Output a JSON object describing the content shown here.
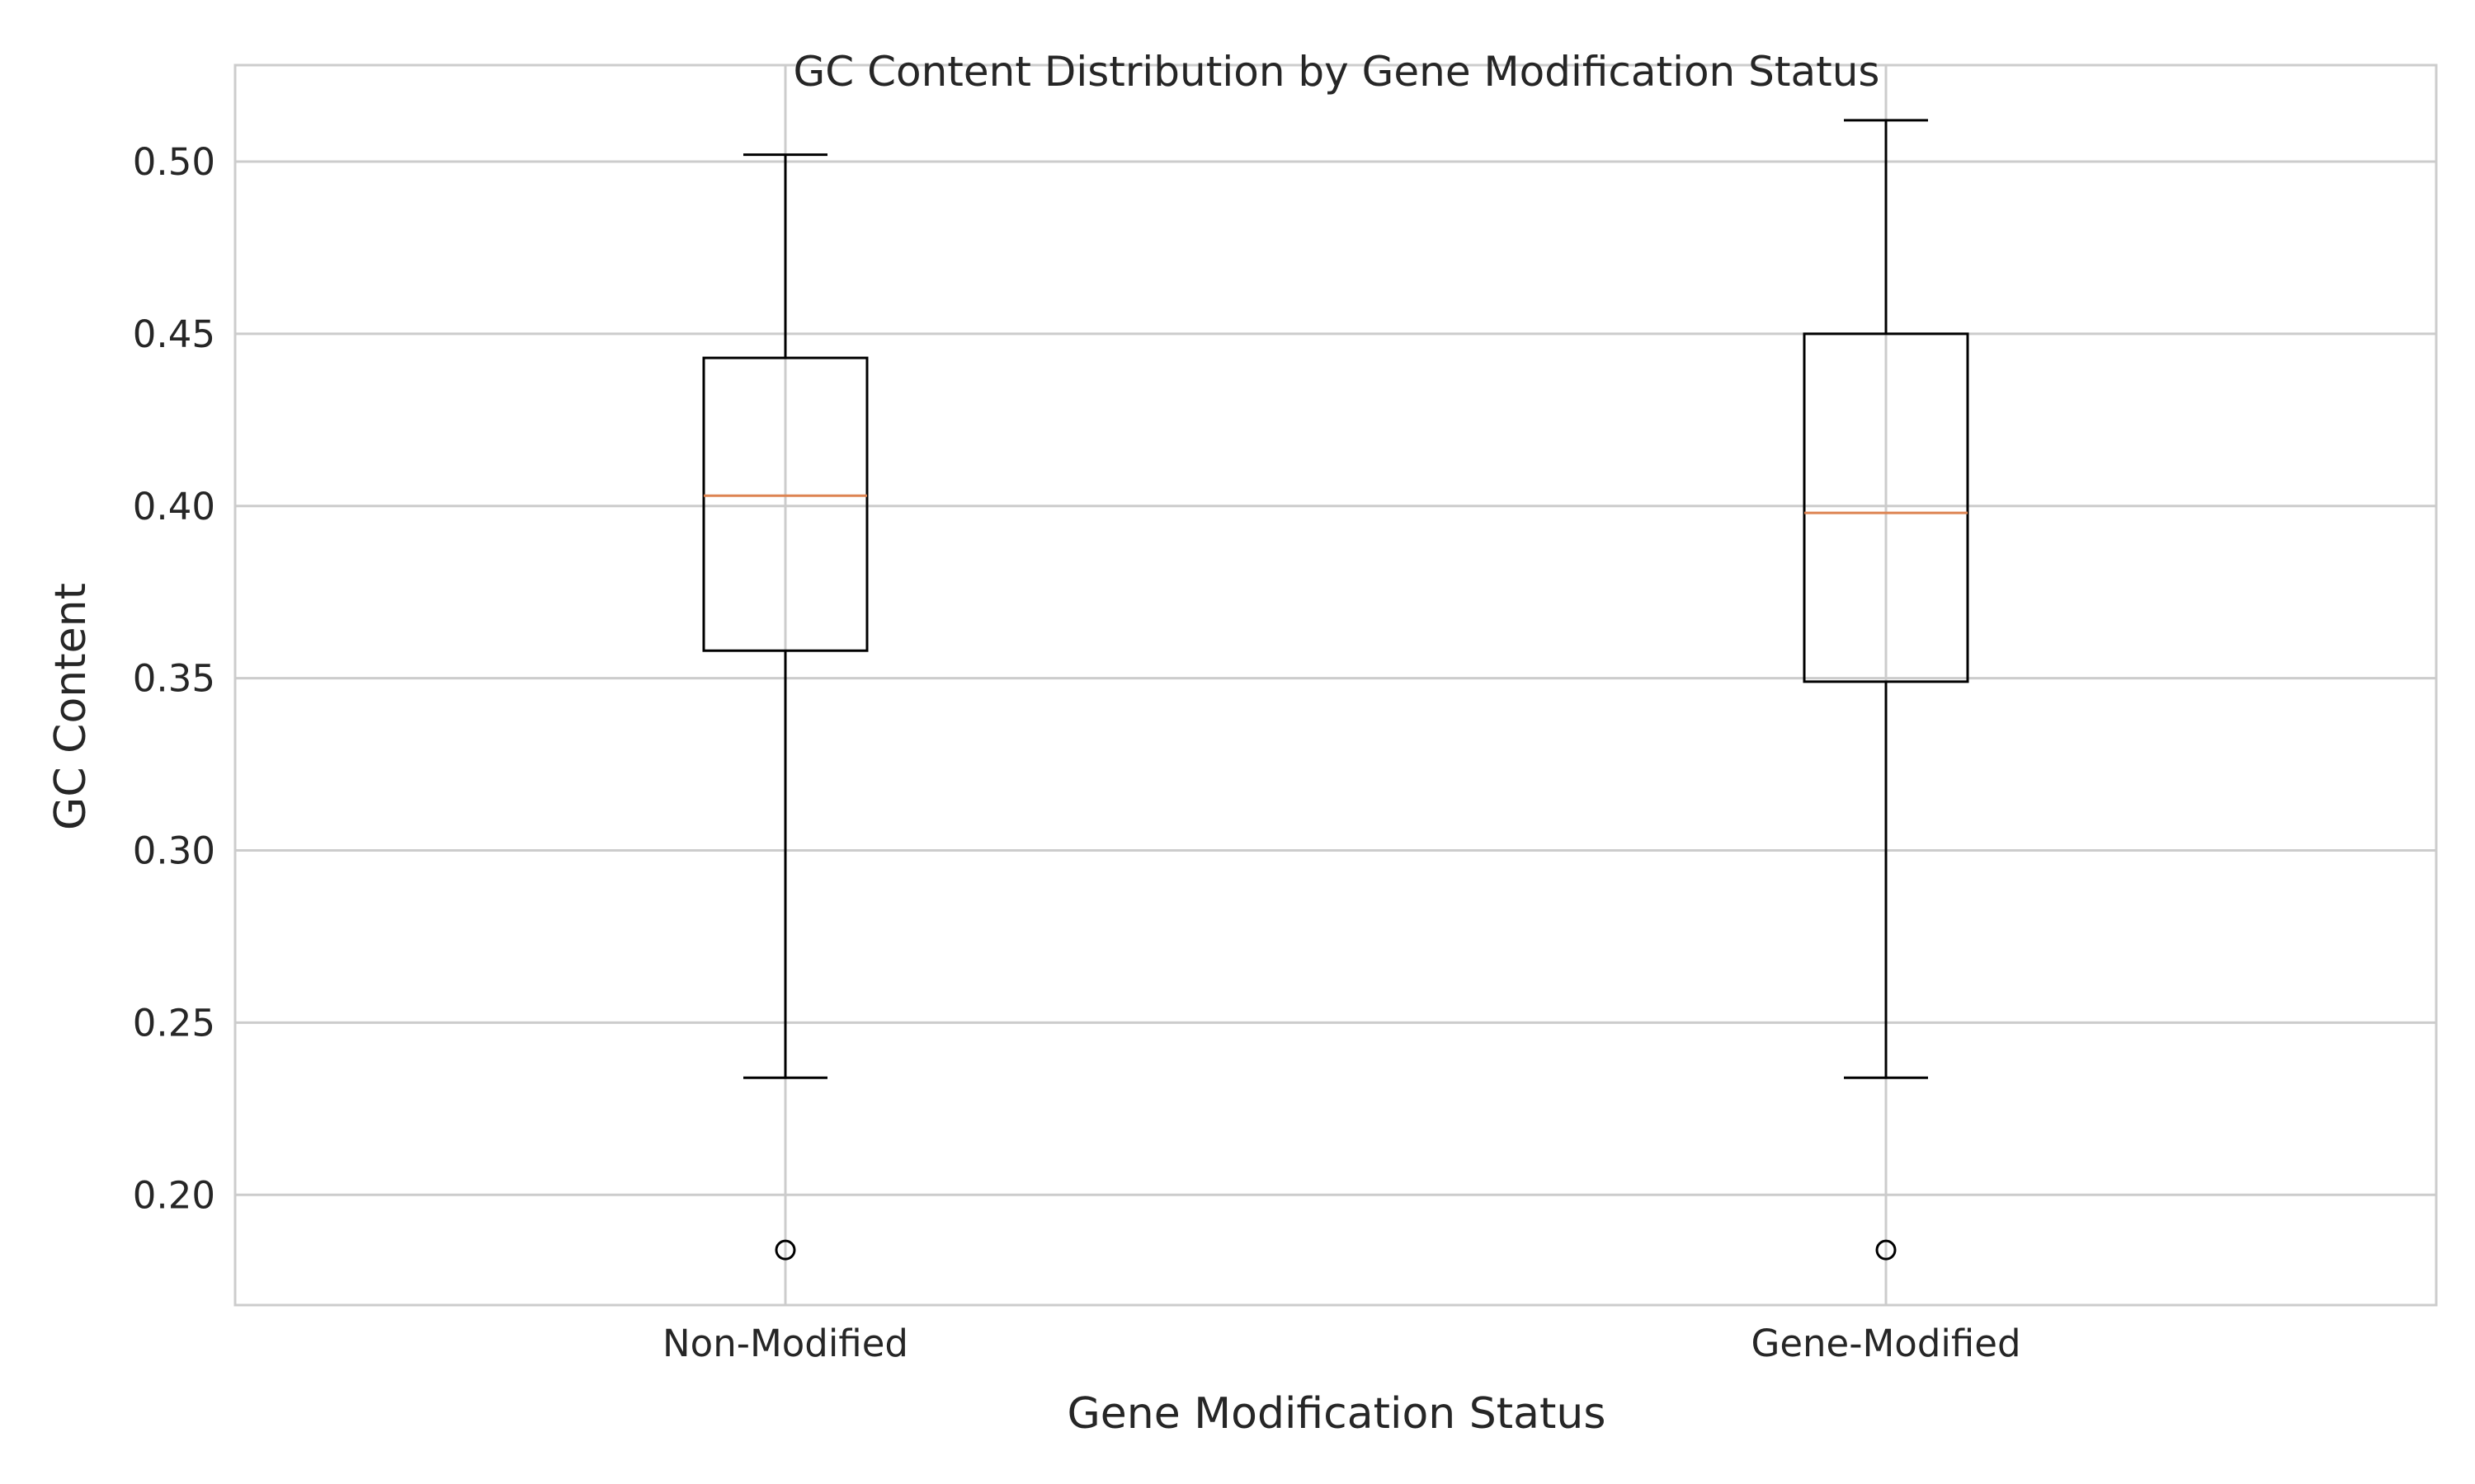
{
  "chart_data": {
    "type": "box",
    "title": "GC Content Distribution by Gene Modification Status",
    "xlabel": "Gene Modification Status",
    "ylabel": "GC Content",
    "ylim": [
      0.168,
      0.528
    ],
    "yticks": [
      0.2,
      0.25,
      0.3,
      0.35,
      0.4,
      0.45,
      0.5
    ],
    "ytick_labels": [
      "0.20",
      "0.25",
      "0.30",
      "0.35",
      "0.40",
      "0.45",
      "0.50"
    ],
    "categories": [
      "Non-Modified",
      "Gene-Modified"
    ],
    "boxes": [
      {
        "category": "Non-Modified",
        "whisker_low": 0.234,
        "q1": 0.358,
        "median": 0.403,
        "q3": 0.443,
        "whisker_high": 0.502,
        "outliers": [
          0.184
        ]
      },
      {
        "category": "Gene-Modified",
        "whisker_low": 0.234,
        "q1": 0.349,
        "median": 0.398,
        "q3": 0.45,
        "whisker_high": 0.512,
        "outliers": [
          0.184
        ]
      }
    ],
    "grid": true,
    "colors": {
      "box": "#000000",
      "median": "#dd8452",
      "grid": "#cccccc",
      "spine": "#cccccc",
      "text": "#262626"
    }
  }
}
